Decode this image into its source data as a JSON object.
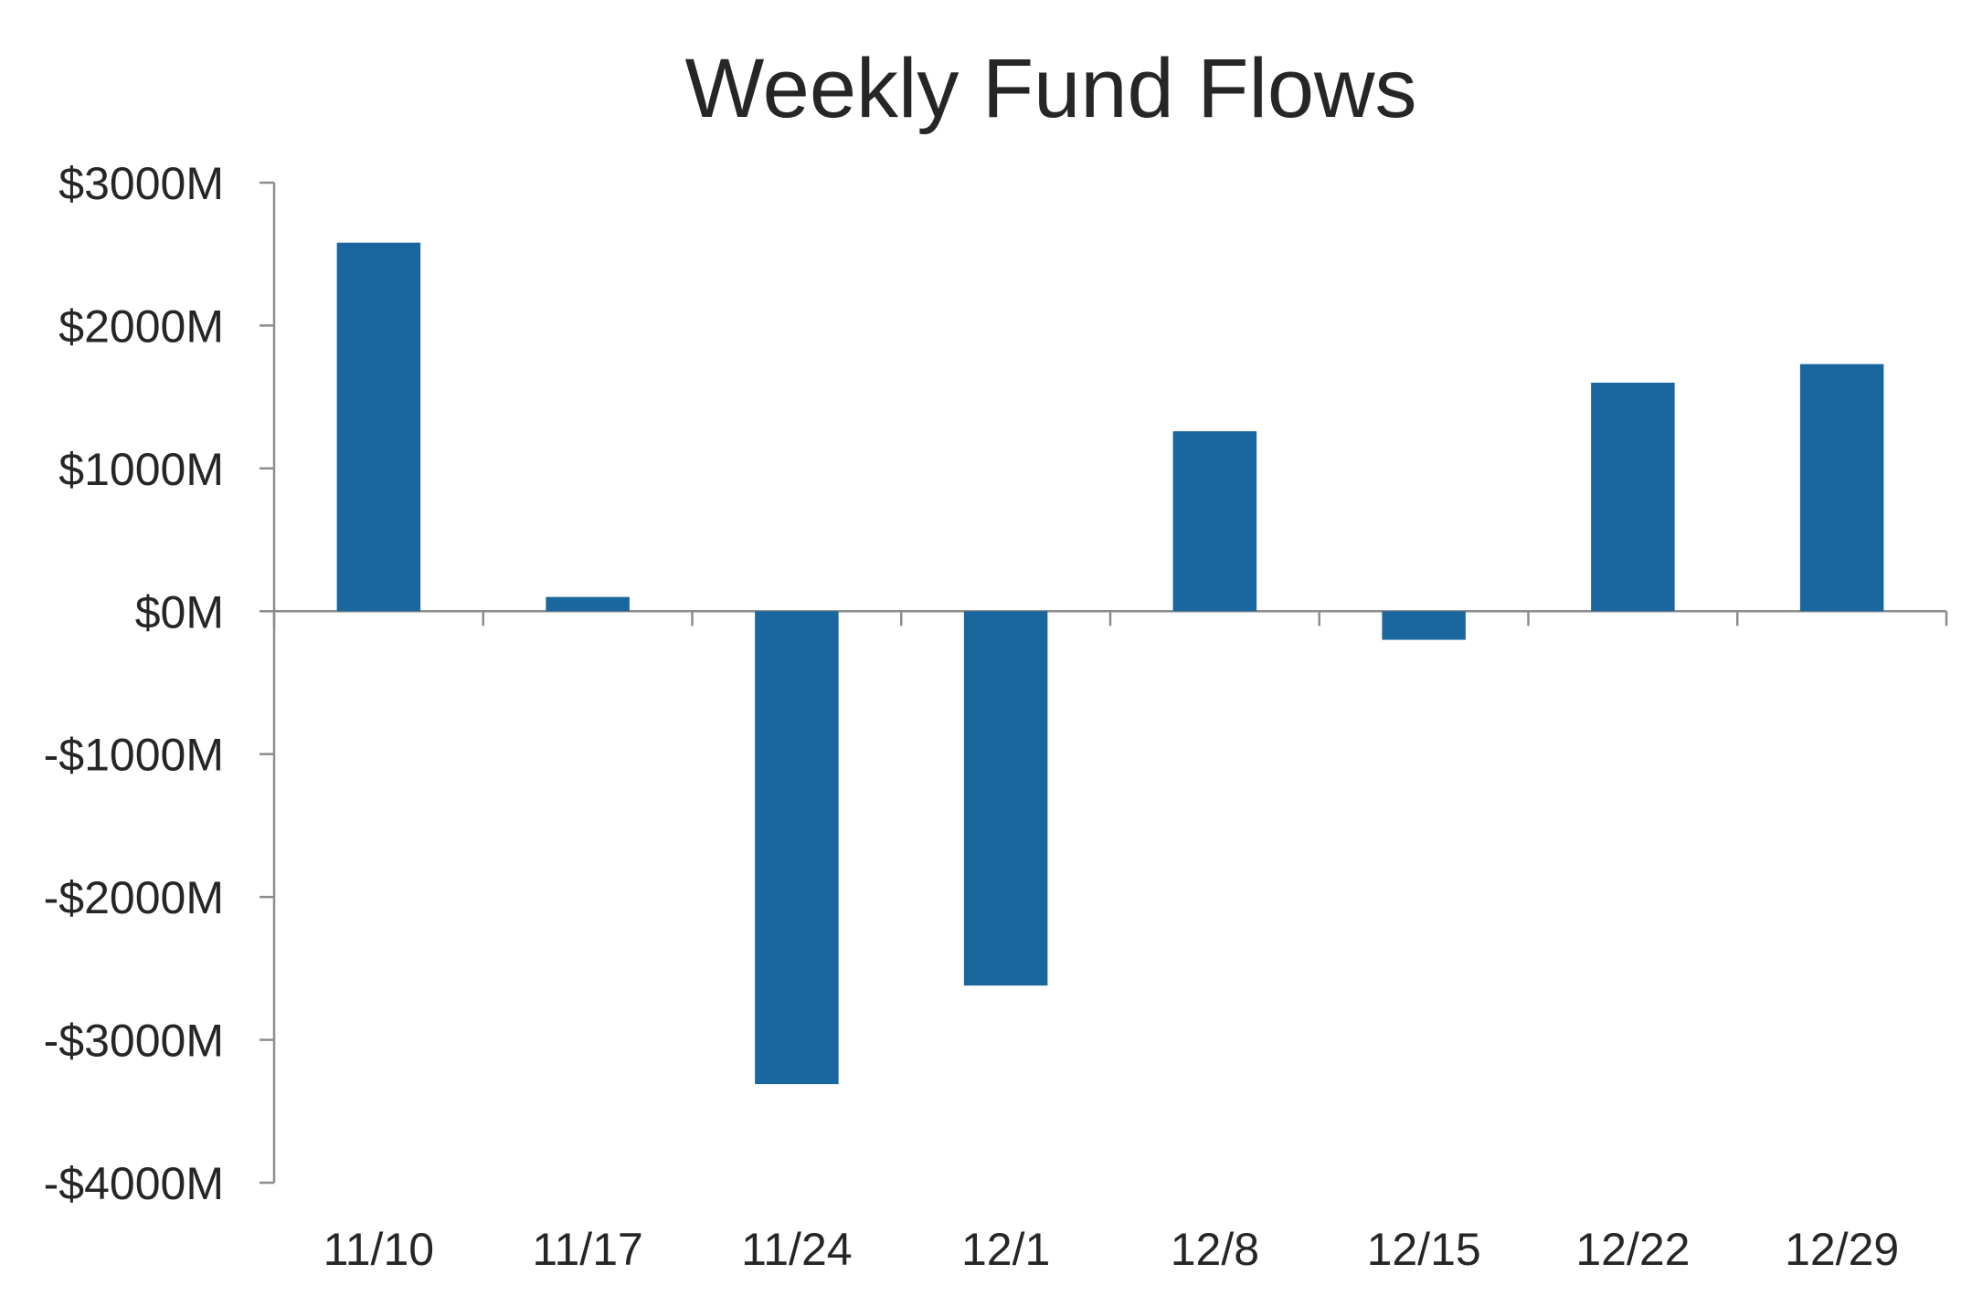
{
  "chart_data": {
    "type": "bar",
    "title": "Weekly Fund Flows",
    "xlabel": "",
    "ylabel": "",
    "categories": [
      "11/10",
      "11/17",
      "11/24",
      "12/1",
      "12/8",
      "12/15",
      "12/22",
      "12/29"
    ],
    "series": [
      {
        "values": [
          2580,
          100,
          -3310,
          -2620,
          1260,
          -200,
          1600,
          1730
        ]
      }
    ],
    "ylim": [
      -4000,
      3000
    ],
    "yticks": [
      3000,
      2000,
      1000,
      0,
      -1000,
      -2000,
      -3000,
      -4000
    ],
    "ytick_labels": [
      "$3000M",
      "$2000M",
      "$1000M",
      "$0M",
      "-$1000M",
      "-$2000M",
      "-$3000M",
      "-$4000M"
    ],
    "bar_color": "#1a67a0",
    "grid": false,
    "legend": "none"
  }
}
